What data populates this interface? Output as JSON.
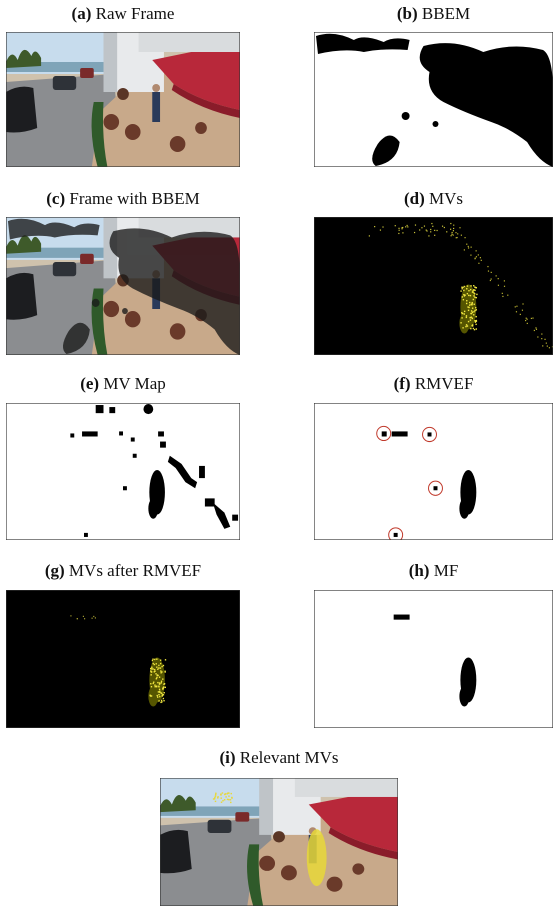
{
  "panels": [
    {
      "label": "(a)",
      "caption": "Raw Frame"
    },
    {
      "label": "(b)",
      "caption": "BBEM"
    },
    {
      "label": "(c)",
      "caption": "Frame with BBEM"
    },
    {
      "label": "(d)",
      "caption": "MVs"
    },
    {
      "label": "(e)",
      "caption": "MV Map"
    },
    {
      "label": "(f)",
      "caption": "RMVEF"
    },
    {
      "label": "(g)",
      "caption": "MVs after RMVEF"
    },
    {
      "label": "(h)",
      "caption": "MF"
    },
    {
      "label": "(i)",
      "caption": "Relevant MVs"
    }
  ]
}
